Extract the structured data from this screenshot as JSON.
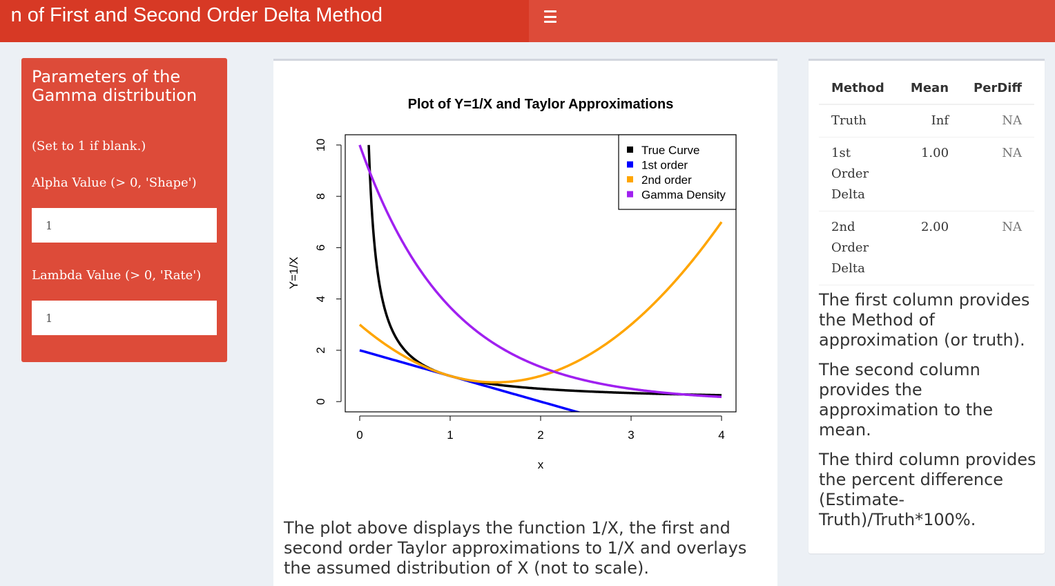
{
  "header": {
    "title": "n of First and Second Order Delta Method",
    "menu_icon": "hamburger-icon"
  },
  "parameters": {
    "title": "Parameters of the Gamma distribution",
    "hint": "(Set to 1 if blank.)",
    "alpha_label": "Alpha Value (> 0, 'Shape')",
    "alpha_value": "1",
    "lambda_label": "Lambda Value (> 0, 'Rate')",
    "lambda_value": "1"
  },
  "chart_data": {
    "type": "line",
    "title": "Plot of Y=1/X and Taylor Approximations",
    "xlabel": "x",
    "ylabel": "Y=1/X",
    "xlim": [
      -0.16,
      4.16
    ],
    "ylim": [
      -0.4,
      10.4
    ],
    "xticks": [
      0,
      1,
      2,
      3,
      4
    ],
    "yticks": [
      0,
      2,
      4,
      6,
      8,
      10
    ],
    "legend_position": "top-right",
    "series": [
      {
        "name": "True Curve",
        "color": "#000000",
        "expr": "1/x",
        "x_range": [
          0.1,
          4
        ]
      },
      {
        "name": "1st order",
        "color": "#0000ff",
        "expr": "2 - x",
        "x_range": [
          0,
          4
        ]
      },
      {
        "name": "2nd order",
        "color": "#ffa500",
        "expr": "3 - 3x + x^2",
        "x_range": [
          0,
          4
        ]
      },
      {
        "name": "Gamma Density",
        "color": "#a020f0",
        "expr": "10*exp(-x)",
        "x_range": [
          0,
          4
        ]
      }
    ]
  },
  "plot_caption": "The plot above displays the function 1/X, the first and second order Taylor approximations to 1/X and overlays the assumed distribution of X (not to scale).",
  "results": {
    "headers": [
      "Method",
      "Mean",
      "PerDiff"
    ],
    "rows": [
      {
        "method": "Truth",
        "mean": "Inf",
        "perdiff": "NA"
      },
      {
        "method": "1st Order Delta",
        "mean": "1.00",
        "perdiff": "NA"
      },
      {
        "method": "2nd Order Delta",
        "mean": "2.00",
        "perdiff": "NA"
      }
    ]
  },
  "notes": [
    "The first column provides the Method of approximation (or truth).",
    "The second column provides the approximation to the mean.",
    "The third column provides the percent difference (Estimate-Truth)/Truth*100%."
  ]
}
